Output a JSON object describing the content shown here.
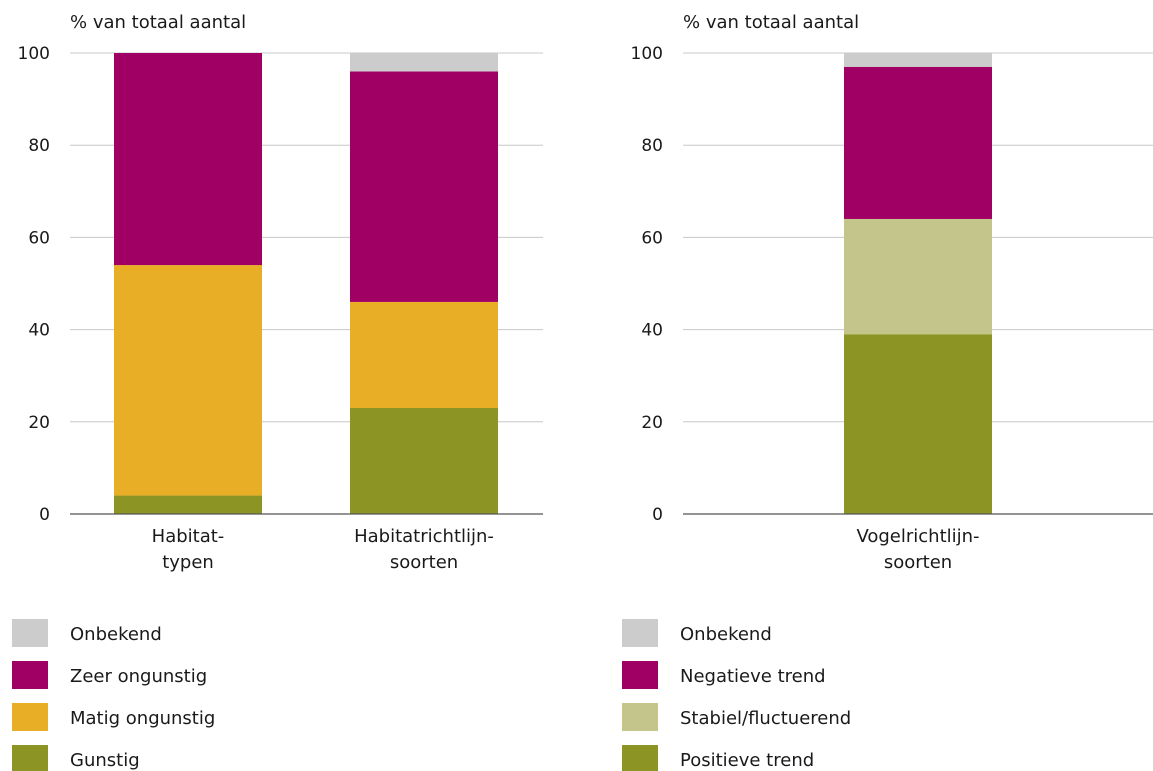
{
  "chart_data": [
    {
      "type": "bar",
      "stacked": true,
      "ylabel": "% van totaal aantal",
      "ylim": [
        0,
        100
      ],
      "yticks": [
        "0",
        "20",
        "40",
        "60",
        "80",
        "100"
      ],
      "grid": true,
      "categories": [
        [
          "Habitat-",
          "typen"
        ],
        [
          "Habitatrichtlijn-",
          "soorten"
        ]
      ],
      "series": [
        {
          "name": "Gunstig",
          "color": "#8c9424",
          "values": [
            4,
            23
          ]
        },
        {
          "name": "Matig ongunstig",
          "color": "#e8ae25",
          "values": [
            50,
            23
          ]
        },
        {
          "name": "Zeer ongunstig",
          "color": "#a00063",
          "values": [
            46,
            50
          ]
        },
        {
          "name": "Onbekend",
          "color": "#cccccc",
          "values": [
            0,
            4
          ]
        }
      ],
      "legend_order": [
        "Onbekend",
        "Zeer ongunstig",
        "Matig ongunstig",
        "Gunstig"
      ]
    },
    {
      "type": "bar",
      "stacked": true,
      "ylabel": "% van totaal aantal",
      "ylim": [
        0,
        100
      ],
      "yticks": [
        "0",
        "20",
        "40",
        "60",
        "80",
        "100"
      ],
      "grid": true,
      "categories": [
        [
          "Vogelrichtlijn-",
          "soorten"
        ]
      ],
      "series": [
        {
          "name": "Positieve trend",
          "color": "#8c9424",
          "values": [
            39
          ]
        },
        {
          "name": "Stabiel/fluctuerend",
          "color": "#c3c58b",
          "values": [
            25
          ]
        },
        {
          "name": "Negatieve trend",
          "color": "#a00063",
          "values": [
            33
          ]
        },
        {
          "name": "Onbekend",
          "color": "#cccccc",
          "values": [
            3
          ]
        }
      ],
      "legend_order": [
        "Onbekend",
        "Negatieve trend",
        "Stabiel/fluctuerend",
        "Positieve trend"
      ]
    }
  ]
}
